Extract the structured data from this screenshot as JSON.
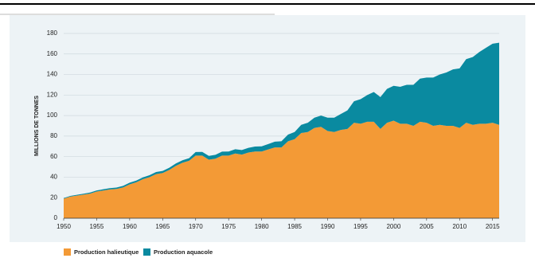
{
  "chart_data": {
    "type": "stacked-area",
    "y_label": "MILLIONS DE TONNES",
    "x": [
      1950,
      1951,
      1952,
      1953,
      1954,
      1955,
      1956,
      1957,
      1958,
      1959,
      1960,
      1961,
      1962,
      1963,
      1964,
      1965,
      1966,
      1967,
      1968,
      1969,
      1970,
      1971,
      1972,
      1973,
      1974,
      1975,
      1976,
      1977,
      1978,
      1979,
      1980,
      1981,
      1982,
      1983,
      1984,
      1985,
      1986,
      1987,
      1988,
      1989,
      1990,
      1991,
      1992,
      1993,
      1994,
      1995,
      1996,
      1997,
      1998,
      1999,
      2000,
      2001,
      2002,
      2003,
      2004,
      2005,
      2006,
      2007,
      2008,
      2009,
      2010,
      2011,
      2012,
      2013,
      2014,
      2015,
      2016
    ],
    "series": [
      {
        "name": "Production halieutique",
        "color": "#f39a36",
        "values": [
          19,
          21,
          22,
          23,
          24,
          26,
          27,
          28,
          28.5,
          30,
          33,
          35,
          38,
          40,
          43,
          44,
          47,
          51,
          54,
          56,
          61,
          61,
          57,
          58,
          61,
          61,
          63,
          62,
          64,
          65,
          65,
          67,
          69,
          69,
          75,
          77,
          83,
          84,
          88,
          89,
          85,
          84,
          86,
          87,
          93,
          92,
          94,
          94,
          87,
          93,
          95,
          92,
          92,
          90,
          94,
          93,
          90,
          91,
          90,
          90,
          88,
          93,
          91,
          92,
          92,
          93,
          91
        ]
      },
      {
        "name": "Production aquacole",
        "color": "#0a8aa0",
        "values": [
          0.6,
          0.7,
          0.8,
          0.9,
          1,
          1.1,
          1.2,
          1.3,
          1.4,
          1.5,
          1.6,
          1.7,
          1.8,
          1.9,
          2,
          2.1,
          2.2,
          2.3,
          2.4,
          2.5,
          3.5,
          3.6,
          3.7,
          3.8,
          3.9,
          4,
          4.2,
          4.4,
          4.6,
          4.8,
          5,
          5.3,
          5.6,
          6,
          6.5,
          7,
          8,
          9,
          10,
          11,
          13,
          14,
          15.5,
          18,
          21,
          24,
          26,
          29,
          31,
          33,
          34,
          36,
          38,
          40,
          42,
          44,
          47,
          49,
          52,
          55,
          58,
          62,
          66,
          70,
          74,
          77,
          80
        ]
      }
    ],
    "xlim": [
      1950,
      2016
    ],
    "xticks": [
      1950,
      1955,
      1960,
      1965,
      1970,
      1975,
      1980,
      1985,
      1990,
      1995,
      2000,
      2005,
      2010,
      2015
    ],
    "ylim": [
      0,
      180
    ],
    "yticks": [
      0,
      20,
      40,
      60,
      80,
      100,
      120,
      140,
      160,
      180
    ],
    "grid": true
  }
}
